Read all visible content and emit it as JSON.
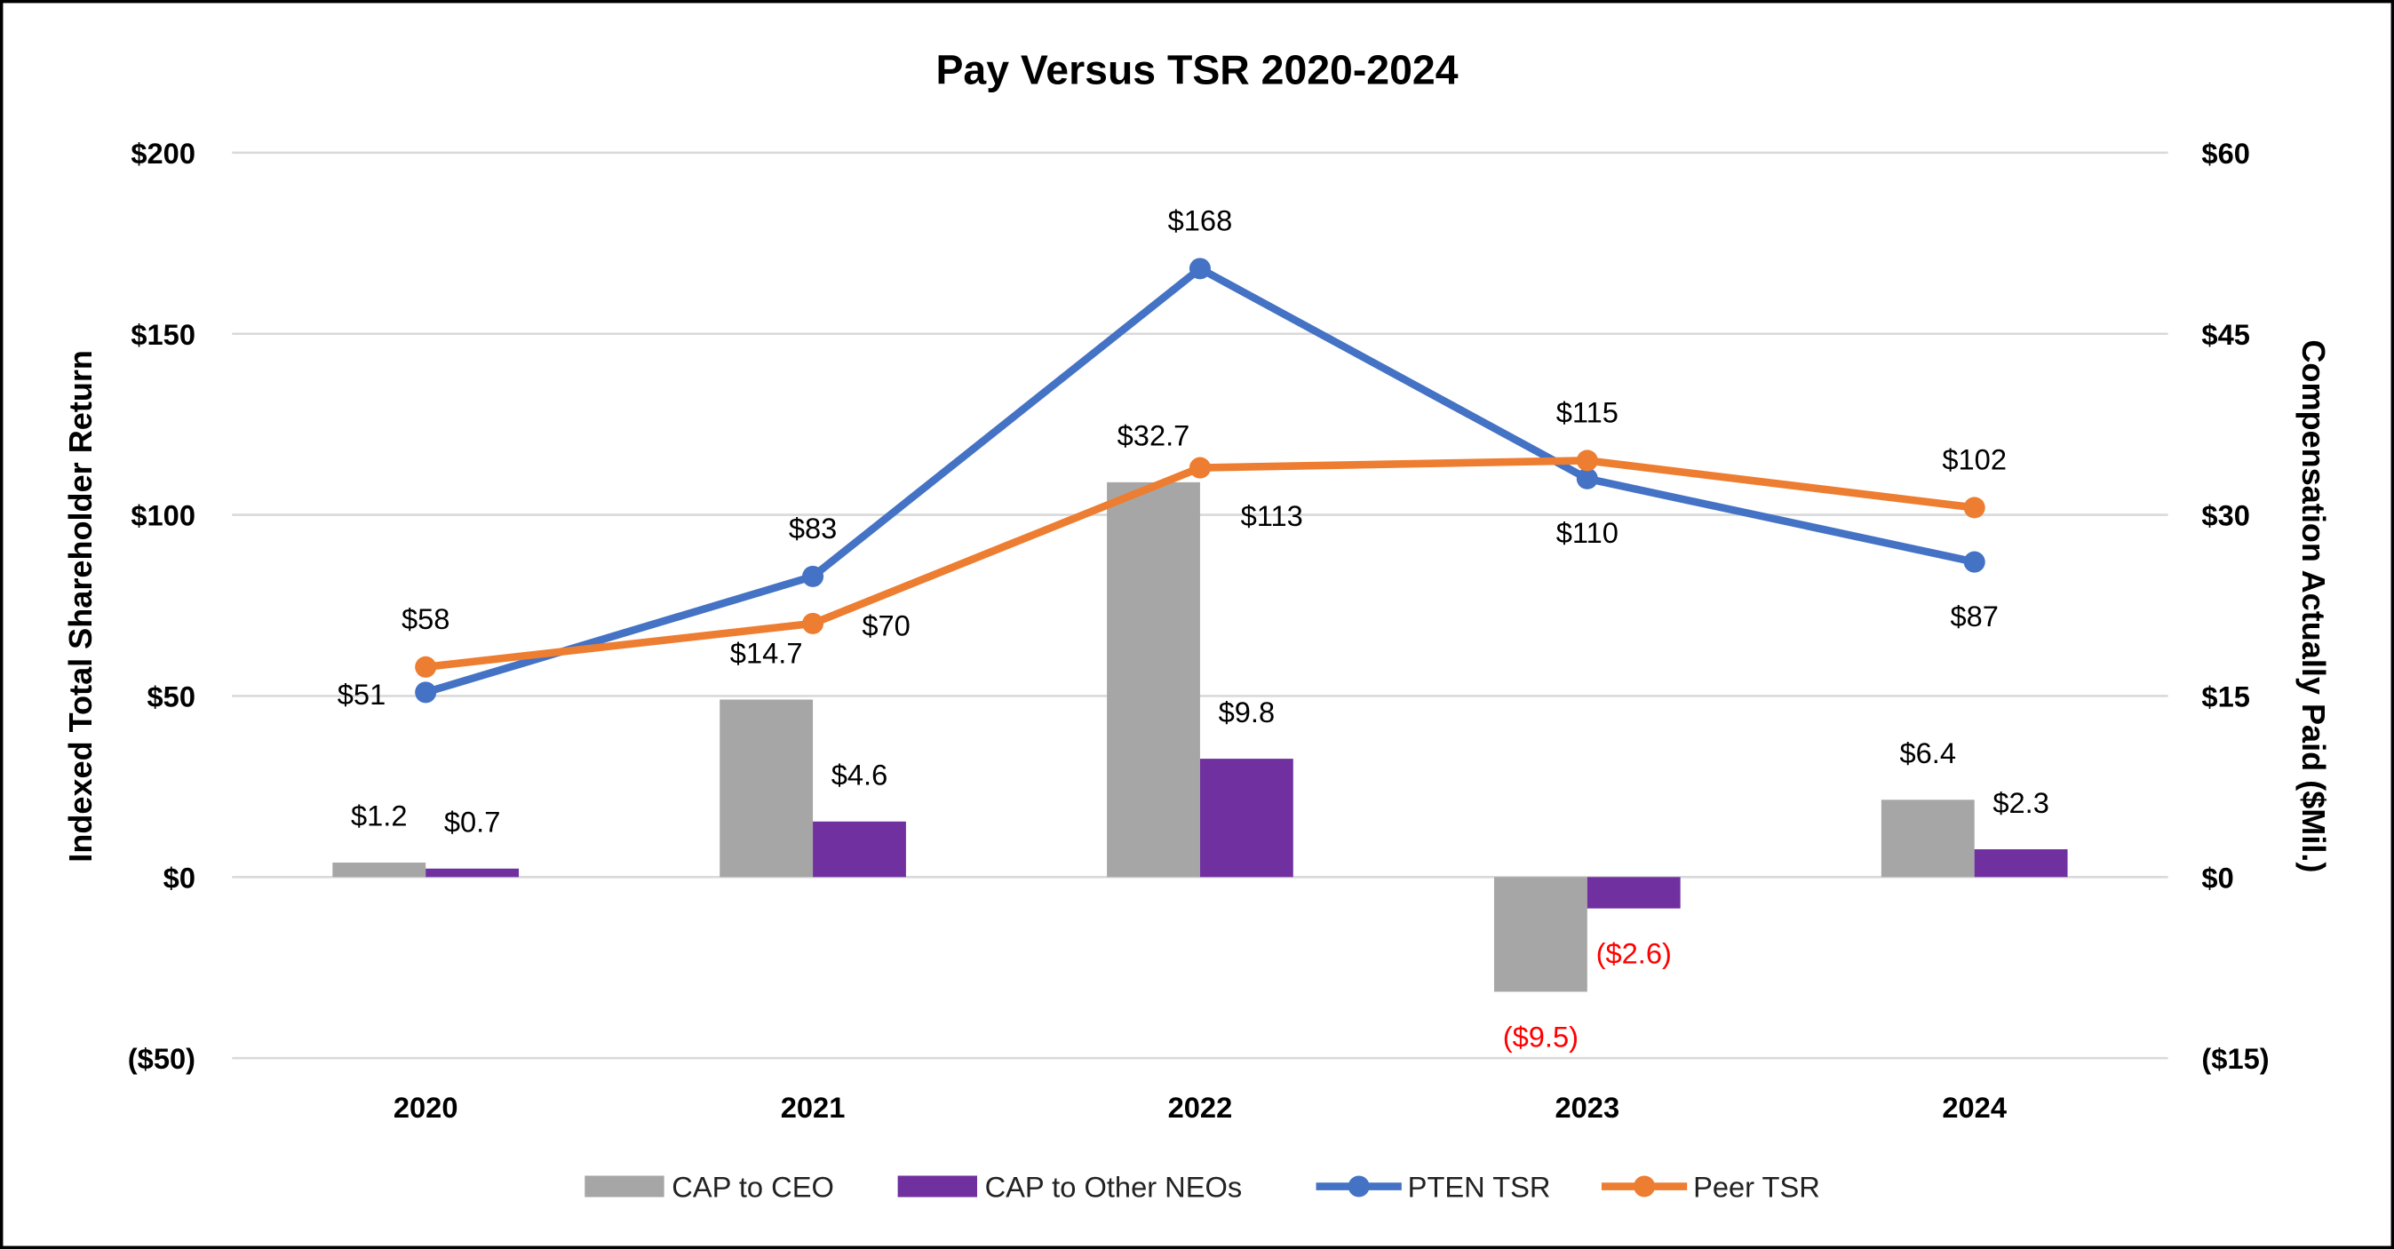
{
  "chart_data": {
    "type": "bar+line",
    "title": "Pay Versus TSR 2020-2024",
    "categories": [
      "2020",
      "2021",
      "2022",
      "2023",
      "2024"
    ],
    "y_left": {
      "label": "Indexed Total Shareholder Return",
      "range": [
        -50,
        200
      ],
      "ticks": [
        200,
        150,
        100,
        50,
        0,
        -50
      ],
      "tick_labels": [
        "$200",
        "$150",
        "$100",
        "$50",
        "$0",
        "($50)"
      ]
    },
    "y_right": {
      "label": "Compensation Actually Paid ($Mil.)",
      "range": [
        -15,
        60
      ],
      "ticks": [
        60,
        45,
        30,
        15,
        0,
        -15
      ],
      "tick_labels": [
        "$60",
        "$45",
        "$30",
        "$15",
        "$0",
        "($15)"
      ]
    },
    "grid": true,
    "legend_position": "bottom",
    "series": [
      {
        "name": "CAP to CEO",
        "type": "bar",
        "axis": "right",
        "color": "#a6a6a6",
        "values": [
          1.2,
          14.7,
          32.7,
          -9.5,
          6.4
        ],
        "labels": [
          "$1.2",
          "$14.7",
          "$32.7",
          "($9.5)",
          "$6.4"
        ]
      },
      {
        "name": "CAP to Other NEOs",
        "type": "bar",
        "axis": "right",
        "color": "#7030a0",
        "values": [
          0.7,
          4.6,
          9.8,
          -2.6,
          2.3
        ],
        "labels": [
          "$0.7",
          "$4.6",
          "$9.8",
          "($2.6)",
          "$2.3"
        ]
      },
      {
        "name": "PTEN TSR",
        "type": "line",
        "axis": "left",
        "color": "#4472c4",
        "values": [
          51,
          83,
          168,
          110,
          87
        ],
        "labels": [
          "$51",
          "$83",
          "$168",
          "$110",
          "$87"
        ]
      },
      {
        "name": "Peer TSR",
        "type": "line",
        "axis": "left",
        "color": "#ed7d31",
        "values": [
          58,
          70,
          113,
          115,
          102
        ],
        "labels": [
          "$58",
          "$70",
          "$113",
          "$115",
          "$102"
        ]
      }
    ],
    "negative_label_color": "#ff0000"
  }
}
